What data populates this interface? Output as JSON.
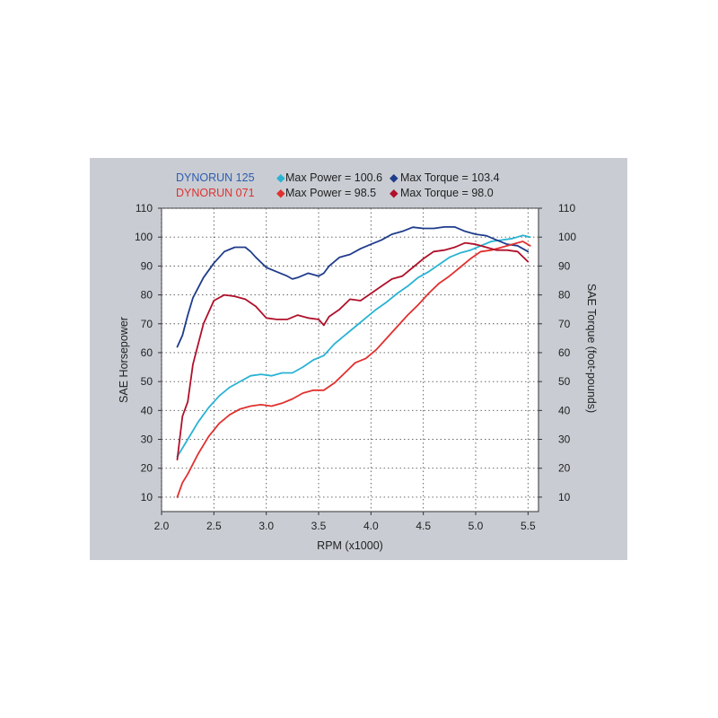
{
  "chart_data": {
    "type": "line",
    "xlabel": "RPM (x1000)",
    "ylabel_left": "SAE Horsepower",
    "ylabel_right": "SAE Torque (foot-pounds)",
    "xlim": [
      2.0,
      5.6
    ],
    "ylim": [
      5,
      110
    ],
    "x_ticks": [
      "2.0",
      "2.5",
      "3.0",
      "3.5",
      "4.0",
      "4.5",
      "5.0",
      "5.5"
    ],
    "y_ticks": [
      "10",
      "20",
      "30",
      "40",
      "50",
      "60",
      "70",
      "80",
      "90",
      "100",
      "110"
    ],
    "grid": true,
    "legend": [
      {
        "run": "DYNORUN 125",
        "color": "#2e5db0",
        "power_label": "Max Power = 100.6",
        "power_color": "#29b3d3",
        "torque_label": "Max Torque = 103.4",
        "torque_color": "#1f3c8c"
      },
      {
        "run": "DYNORUN 071",
        "color": "#e0312f",
        "power_label": "Max Power = 98.5",
        "power_color": "#e0312f",
        "torque_label": "Max Torque = 98.0",
        "torque_color": "#b0102a"
      }
    ],
    "series": [
      {
        "name": "Max Power = 100.6",
        "color": "#29b3d3",
        "x": [
          2.15,
          2.25,
          2.35,
          2.45,
          2.55,
          2.65,
          2.75,
          2.85,
          2.95,
          3.05,
          3.15,
          3.25,
          3.35,
          3.45,
          3.55,
          3.65,
          3.75,
          3.85,
          3.95,
          4.05,
          4.15,
          4.25,
          4.35,
          4.45,
          4.55,
          4.65,
          4.75,
          4.85,
          4.95,
          5.05,
          5.15,
          5.25,
          5.35,
          5.45,
          5.52
        ],
        "y": [
          24,
          30,
          36,
          41,
          45,
          48,
          50,
          52,
          52.5,
          52,
          53,
          53,
          55,
          57.5,
          59,
          63,
          66,
          69,
          72,
          75,
          77.5,
          80.5,
          83,
          86,
          88,
          90.5,
          93,
          94.5,
          95.5,
          97,
          98.5,
          99,
          99.5,
          100.6,
          100
        ]
      },
      {
        "name": "Max Torque = 103.4",
        "color": "#1f3c8c",
        "x": [
          2.15,
          2.2,
          2.25,
          2.3,
          2.4,
          2.5,
          2.6,
          2.7,
          2.8,
          2.85,
          2.9,
          3.0,
          3.1,
          3.2,
          3.25,
          3.3,
          3.4,
          3.5,
          3.55,
          3.6,
          3.7,
          3.8,
          3.9,
          4.0,
          4.1,
          4.2,
          4.3,
          4.4,
          4.5,
          4.6,
          4.7,
          4.8,
          4.9,
          5.0,
          5.1,
          5.2,
          5.3,
          5.4,
          5.5
        ],
        "y": [
          62,
          66,
          73,
          79,
          86,
          91,
          95,
          96.5,
          96.5,
          95,
          93,
          89.5,
          88,
          86.5,
          85.5,
          86,
          87.5,
          86.5,
          87.5,
          90,
          93,
          94,
          96,
          97.5,
          99,
          101,
          102,
          103.4,
          103,
          103,
          103.5,
          103.5,
          102,
          101,
          100.5,
          99,
          97.5,
          97,
          95
        ]
      },
      {
        "name": "Max Power = 98.5",
        "color": "#e0312f",
        "x": [
          2.15,
          2.2,
          2.25,
          2.35,
          2.45,
          2.55,
          2.65,
          2.75,
          2.85,
          2.95,
          3.05,
          3.15,
          3.25,
          3.35,
          3.45,
          3.55,
          3.65,
          3.75,
          3.85,
          3.95,
          4.05,
          4.15,
          4.25,
          4.35,
          4.45,
          4.55,
          4.65,
          4.75,
          4.85,
          4.95,
          5.05,
          5.15,
          5.25,
          5.35,
          5.45,
          5.52
        ],
        "y": [
          10,
          15,
          18,
          25,
          31,
          35.5,
          38.5,
          40.5,
          41.5,
          42,
          41.5,
          42.5,
          44,
          46,
          47,
          47,
          49.5,
          53,
          56.5,
          58,
          61,
          65,
          69,
          73,
          76.5,
          80.5,
          84,
          86.5,
          89.5,
          92.5,
          95,
          95.5,
          96.5,
          97.5,
          98.5,
          97
        ]
      },
      {
        "name": "Max Torque = 98.0",
        "color": "#b0102a",
        "x": [
          2.15,
          2.2,
          2.25,
          2.3,
          2.4,
          2.5,
          2.6,
          2.7,
          2.8,
          2.9,
          3.0,
          3.1,
          3.2,
          3.3,
          3.4,
          3.5,
          3.55,
          3.6,
          3.7,
          3.8,
          3.9,
          4.0,
          4.1,
          4.2,
          4.3,
          4.4,
          4.5,
          4.6,
          4.7,
          4.8,
          4.9,
          5.0,
          5.1,
          5.2,
          5.3,
          5.4,
          5.5
        ],
        "y": [
          23,
          38,
          43,
          56,
          70,
          78,
          80,
          79.5,
          78.5,
          76,
          72,
          71.5,
          71.5,
          73,
          72,
          71.5,
          69.5,
          72.5,
          75,
          78.5,
          78,
          80.5,
          83,
          85.5,
          86.5,
          89.5,
          92.5,
          95,
          95.5,
          96.5,
          98,
          97.5,
          96.5,
          95.5,
          95.5,
          95,
          91.5
        ]
      }
    ]
  }
}
